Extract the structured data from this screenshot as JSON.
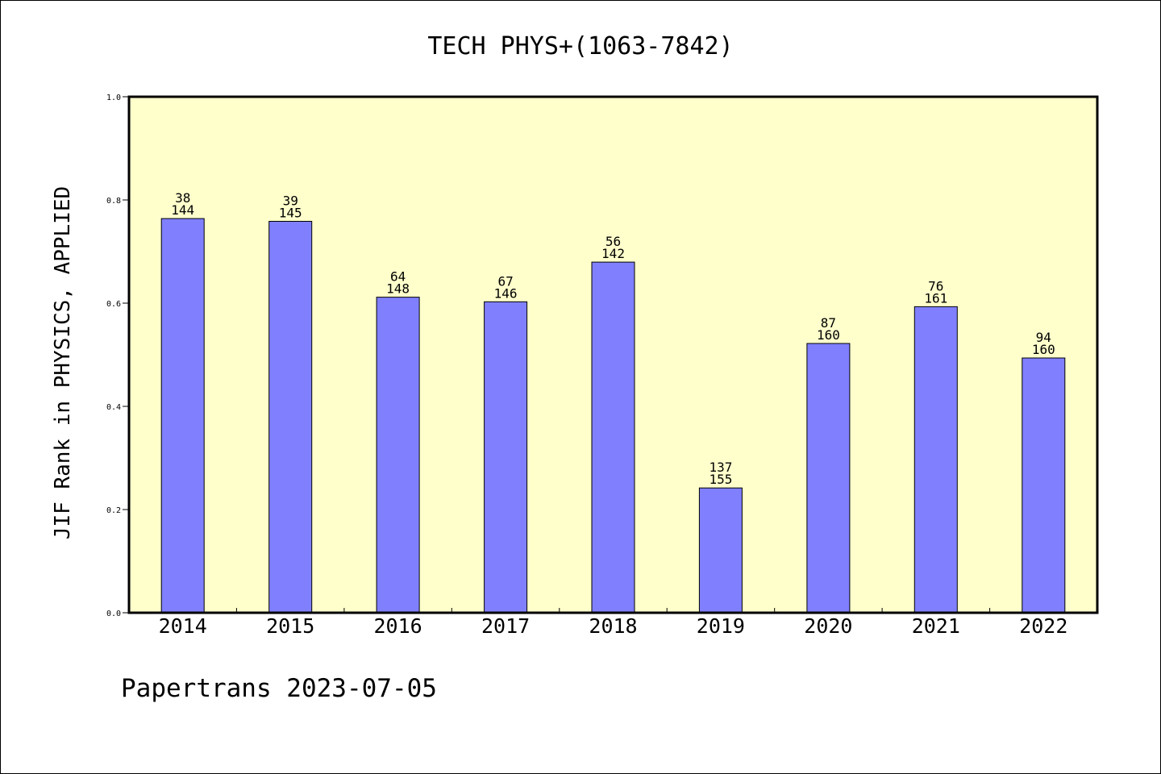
{
  "chart_data": {
    "type": "bar",
    "title": "TECH PHYS+(1063-7842)",
    "ylabel": "JIF Rank in PHYSICS, APPLIED",
    "xlabel": "",
    "ylim": [
      0,
      1.0
    ],
    "yticks": [
      "0.0",
      "0.2",
      "0.4",
      "0.6",
      "0.8",
      "1.0"
    ],
    "categories": [
      "2014",
      "2015",
      "2016",
      "2017",
      "2018",
      "2019",
      "2020",
      "2021",
      "2022"
    ],
    "values": [
      0.7639,
      0.7586,
      0.6115,
      0.6027,
      0.6796,
      0.2419,
      0.5219,
      0.5932,
      0.4938
    ],
    "rank": [
      "38",
      "39",
      "64",
      "67",
      "56",
      "137",
      "87",
      "76",
      "94"
    ],
    "total": [
      "144",
      "145",
      "148",
      "146",
      "142",
      "155",
      "160",
      "161",
      "160"
    ],
    "grid": false,
    "colors": {
      "plot_background": "#ffffcc",
      "bar_fill": "#8080ff",
      "bar_stroke": "#000000"
    }
  },
  "footer": {
    "text": "Papertrans 2023-07-05"
  }
}
